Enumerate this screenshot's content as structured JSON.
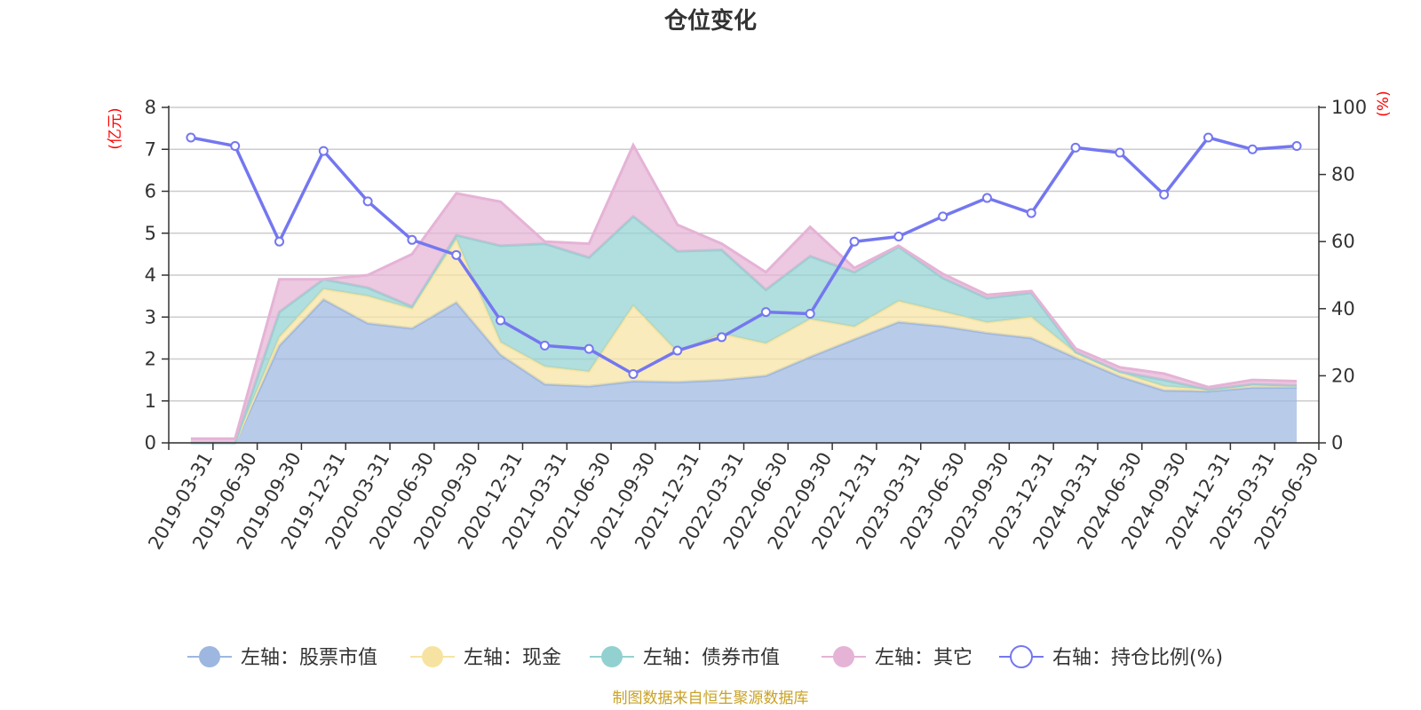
{
  "chart_data": {
    "type": "area",
    "title": "仓位变化",
    "left_axis_unit": "(亿元)",
    "right_axis_unit": "(%)",
    "left_ylim": [
      0,
      8
    ],
    "left_ticks": [
      "0",
      "1",
      "2",
      "3",
      "4",
      "5",
      "6",
      "7",
      "8"
    ],
    "right_ylim": [
      0,
      100
    ],
    "right_ticks": [
      "0",
      "20",
      "40",
      "60",
      "80",
      "100"
    ],
    "grid": true,
    "legend_position": "bottom",
    "x": [
      "2019-03-31",
      "2019-06-30",
      "2019-09-30",
      "2019-12-31",
      "2020-03-31",
      "2020-06-30",
      "2020-09-30",
      "2020-12-31",
      "2021-03-31",
      "2021-06-30",
      "2021-09-30",
      "2021-12-31",
      "2022-03-31",
      "2022-06-30",
      "2022-09-30",
      "2022-12-31",
      "2023-03-31",
      "2023-06-30",
      "2023-09-30",
      "2023-12-31",
      "2024-03-31",
      "2024-06-30",
      "2024-09-30",
      "2024-12-31",
      "2025-03-31",
      "2025-06-30"
    ],
    "stacked_series": [
      {
        "name": "左轴：股票市值",
        "color": "#9db7e0",
        "values": [
          0,
          0,
          2.32,
          3.42,
          2.85,
          2.73,
          3.35,
          2.1,
          1.4,
          1.35,
          1.47,
          1.45,
          1.5,
          1.6,
          2.05,
          2.47,
          2.88,
          2.78,
          2.62,
          2.5,
          2.03,
          1.58,
          1.25,
          1.23,
          1.32,
          1.32
        ]
      },
      {
        "name": "左轴：现金",
        "color": "#f7e3a1",
        "values": [
          0,
          0,
          0.2,
          0.25,
          0.65,
          0.47,
          1.5,
          0.3,
          0.42,
          0.35,
          1.8,
          0.72,
          1.1,
          0.77,
          0.9,
          0.3,
          0.5,
          0.35,
          0.25,
          0.5,
          0.12,
          0.1,
          0.1,
          0.04,
          0.08,
          0.05
        ]
      },
      {
        "name": "左轴：债券市值",
        "color": "#93d1d1",
        "values": [
          0,
          0,
          0.6,
          0.23,
          0.2,
          0.05,
          0.1,
          2.3,
          2.93,
          2.72,
          2.13,
          2.4,
          2.0,
          1.28,
          1.5,
          1.3,
          1.3,
          0.8,
          0.58,
          0.58,
          0.02,
          0.02,
          0.15,
          0,
          0,
          0
        ]
      },
      {
        "name": "左轴：其它",
        "color": "#e5b3d6",
        "values": [
          0.1,
          0.1,
          0.78,
          0,
          0.3,
          1.25,
          1.0,
          1.05,
          0.05,
          0.33,
          1.7,
          0.63,
          0.15,
          0.42,
          0.7,
          0.1,
          0.02,
          0.1,
          0.08,
          0.04,
          0.08,
          0.1,
          0.15,
          0.06,
          0.1,
          0.1
        ]
      }
    ],
    "line_series": {
      "name": "右轴：持仓比例(%)",
      "color": "#7477f0",
      "values": [
        91,
        88.5,
        60,
        87,
        72,
        60.5,
        56,
        36.5,
        29,
        28,
        20.5,
        27.5,
        31.5,
        39,
        38.5,
        60,
        61.5,
        67.5,
        73,
        68.5,
        88,
        86.5,
        74,
        91,
        87.5,
        88.5
      ]
    }
  },
  "legend_items": [
    {
      "label": "左轴：股票市值"
    },
    {
      "label": "左轴：现金"
    },
    {
      "label": "左轴：债券市值"
    },
    {
      "label": "左轴：其它"
    },
    {
      "label": "右轴：持仓比例(%)"
    }
  ],
  "source_text": "制图数据来自恒生聚源数据库"
}
